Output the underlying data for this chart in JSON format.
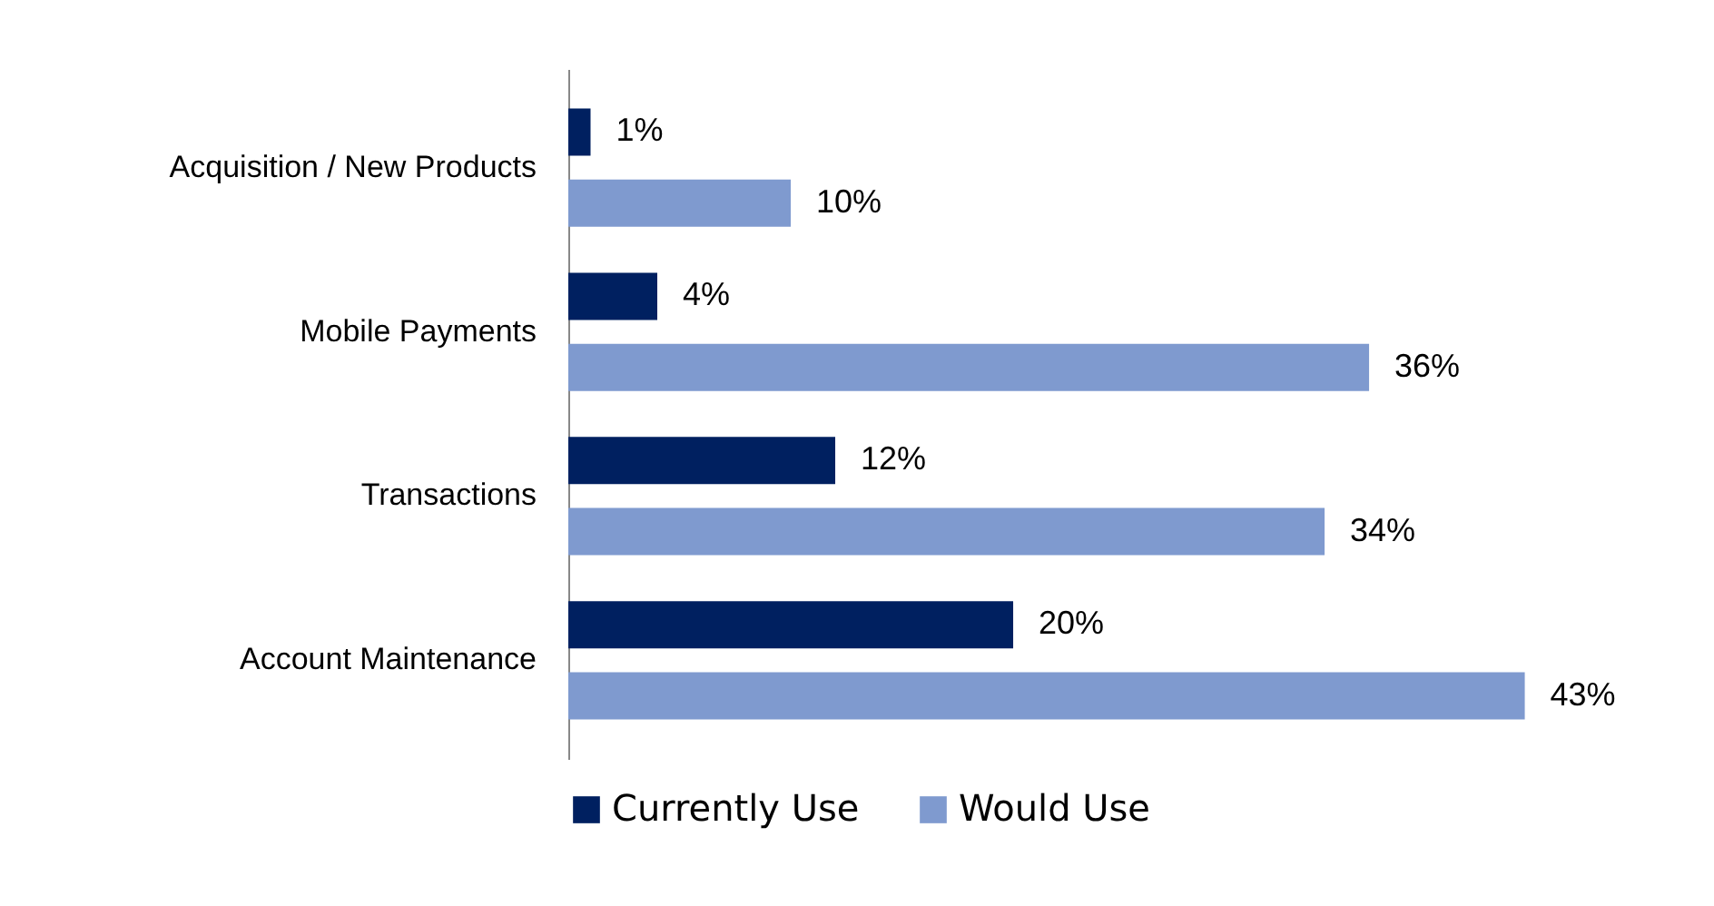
{
  "chart_data": {
    "type": "bar",
    "orientation": "horizontal",
    "categories": [
      "Acquisition / New Products",
      "Mobile Payments",
      "Transactions",
      "Account Maintenance"
    ],
    "series": [
      {
        "name": "Currently Use",
        "color": "#002060",
        "values": [
          1,
          4,
          12,
          20
        ],
        "value_labels": [
          "1%",
          "4%",
          "12%",
          "20%"
        ]
      },
      {
        "name": "Would Use",
        "color": "#7f9acf",
        "values": [
          10,
          36,
          34,
          43
        ],
        "value_labels": [
          "10%",
          "36%",
          "34%",
          "43%"
        ]
      }
    ],
    "legend": "bottom",
    "grid": false
  }
}
